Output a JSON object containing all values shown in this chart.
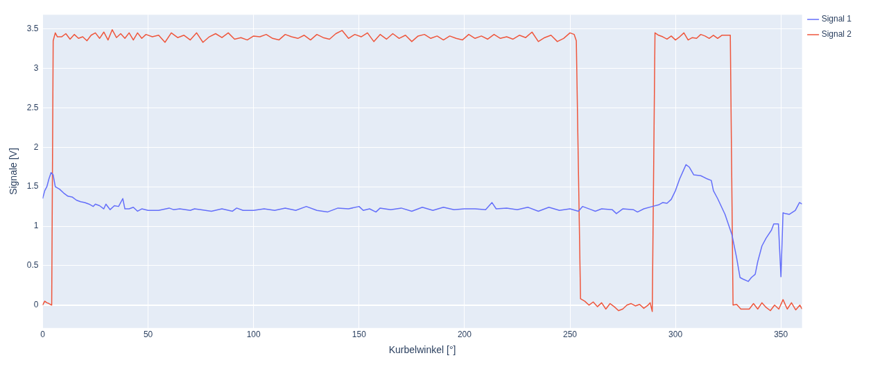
{
  "chart_data": {
    "type": "line",
    "xlabel": "Kurbelwinkel [°]",
    "ylabel": "Signale [V]",
    "xlim": [
      0,
      360
    ],
    "ylim": [
      -0.29,
      3.68
    ],
    "xticks": [
      0,
      50,
      100,
      150,
      200,
      250,
      300,
      350
    ],
    "yticks": [
      0,
      0.5,
      1,
      1.5,
      2,
      2.5,
      3,
      3.5
    ],
    "grid": true,
    "legend": "top right",
    "series": [
      {
        "name": "Signal 1",
        "color": "#636efa",
        "x": [
          0,
          1,
          2,
          3,
          4,
          5,
          6,
          8,
          10,
          12,
          14,
          16,
          18,
          20,
          22,
          24,
          25,
          27,
          29,
          30,
          32,
          34,
          36,
          38,
          39,
          41,
          43,
          45,
          47,
          50,
          55,
          60,
          62,
          65,
          70,
          72,
          75,
          80,
          85,
          90,
          92,
          95,
          100,
          105,
          110,
          115,
          120,
          125,
          130,
          135,
          140,
          145,
          150,
          152,
          155,
          158,
          160,
          165,
          170,
          175,
          180,
          185,
          190,
          195,
          200,
          205,
          210,
          213,
          215,
          220,
          225,
          230,
          235,
          240,
          245,
          250,
          254,
          256,
          260,
          262,
          265,
          270,
          272,
          275,
          280,
          282,
          285,
          289,
          292,
          294,
          296,
          298,
          300,
          302,
          304,
          305,
          306.5,
          308.7,
          312,
          315,
          317,
          318,
          320,
          323.5,
          326.8,
          329,
          330.6,
          332,
          334.5,
          336,
          337.8,
          339,
          341,
          343,
          345.5,
          346.6,
          348.8,
          350,
          351,
          352,
          354,
          356.8,
          358.8,
          360
        ],
        "values": [
          1.35,
          1.45,
          1.5,
          1.6,
          1.68,
          1.65,
          1.5,
          1.47,
          1.42,
          1.38,
          1.37,
          1.33,
          1.31,
          1.3,
          1.28,
          1.25,
          1.28,
          1.26,
          1.22,
          1.28,
          1.21,
          1.26,
          1.25,
          1.35,
          1.22,
          1.22,
          1.24,
          1.19,
          1.22,
          1.2,
          1.2,
          1.23,
          1.21,
          1.22,
          1.2,
          1.22,
          1.21,
          1.19,
          1.22,
          1.19,
          1.23,
          1.2,
          1.2,
          1.22,
          1.2,
          1.23,
          1.2,
          1.25,
          1.2,
          1.18,
          1.23,
          1.22,
          1.25,
          1.2,
          1.22,
          1.18,
          1.23,
          1.21,
          1.23,
          1.19,
          1.24,
          1.2,
          1.24,
          1.21,
          1.22,
          1.22,
          1.21,
          1.3,
          1.22,
          1.23,
          1.21,
          1.24,
          1.19,
          1.24,
          1.2,
          1.22,
          1.19,
          1.25,
          1.21,
          1.19,
          1.22,
          1.21,
          1.16,
          1.22,
          1.21,
          1.18,
          1.22,
          1.25,
          1.27,
          1.3,
          1.29,
          1.34,
          1.45,
          1.6,
          1.72,
          1.78,
          1.75,
          1.65,
          1.64,
          1.6,
          1.58,
          1.45,
          1.35,
          1.15,
          0.89,
          0.6,
          0.35,
          0.33,
          0.3,
          0.35,
          0.39,
          0.55,
          0.75,
          0.85,
          0.95,
          1.03,
          1.03,
          0.36,
          1.17,
          1.16,
          1.15,
          1.2,
          1.3,
          1.28
        ]
      },
      {
        "name": "Signal 2",
        "color": "#ef553b",
        "x": [
          0,
          1,
          2,
          3,
          4.3,
          5,
          6,
          7,
          9,
          11,
          13,
          15,
          17,
          19,
          21,
          23,
          25,
          27,
          29,
          31,
          33,
          35,
          37,
          39,
          41,
          43,
          45,
          47,
          49,
          52,
          55,
          58,
          61,
          64,
          67,
          70,
          73,
          76,
          79,
          82,
          85,
          88,
          91,
          94,
          97,
          100,
          103,
          106,
          109,
          112,
          115,
          118,
          121,
          124,
          127,
          130,
          133,
          136,
          139,
          142,
          145,
          148,
          151,
          154,
          157,
          160,
          163,
          166,
          169,
          172,
          175,
          178,
          181,
          184,
          187,
          190,
          193,
          196,
          199,
          202,
          205,
          208,
          211,
          214,
          217,
          220,
          223,
          226,
          229,
          232,
          235,
          238,
          241,
          244,
          247,
          250,
          252,
          253,
          255,
          257,
          259,
          261,
          263,
          265,
          267,
          269,
          271,
          273,
          275,
          277,
          279,
          281,
          283,
          285,
          287,
          288,
          289,
          290.3,
          292,
          294,
          296,
          298,
          300,
          302,
          304,
          306,
          308,
          310,
          312,
          314,
          316,
          318,
          320,
          322,
          324,
          326,
          327.3,
          329,
          331,
          333,
          335,
          337,
          339,
          341,
          343,
          345,
          347,
          349,
          351,
          353,
          355,
          357,
          359,
          360
        ],
        "values": [
          0.0,
          0.05,
          0.03,
          0.02,
          0.0,
          3.35,
          3.45,
          3.4,
          3.4,
          3.44,
          3.37,
          3.43,
          3.38,
          3.4,
          3.35,
          3.42,
          3.45,
          3.38,
          3.46,
          3.36,
          3.49,
          3.39,
          3.44,
          3.38,
          3.45,
          3.36,
          3.45,
          3.38,
          3.43,
          3.4,
          3.42,
          3.33,
          3.45,
          3.39,
          3.42,
          3.36,
          3.45,
          3.33,
          3.4,
          3.44,
          3.39,
          3.45,
          3.37,
          3.39,
          3.36,
          3.41,
          3.4,
          3.43,
          3.38,
          3.36,
          3.43,
          3.4,
          3.38,
          3.42,
          3.36,
          3.43,
          3.39,
          3.37,
          3.44,
          3.48,
          3.38,
          3.43,
          3.4,
          3.45,
          3.34,
          3.43,
          3.37,
          3.44,
          3.38,
          3.42,
          3.34,
          3.41,
          3.43,
          3.38,
          3.41,
          3.36,
          3.41,
          3.38,
          3.36,
          3.43,
          3.38,
          3.41,
          3.37,
          3.43,
          3.38,
          3.4,
          3.37,
          3.42,
          3.39,
          3.46,
          3.34,
          3.39,
          3.42,
          3.34,
          3.38,
          3.45,
          3.43,
          3.35,
          0.08,
          0.05,
          0.0,
          0.04,
          -0.02,
          0.03,
          -0.05,
          0.02,
          -0.02,
          -0.07,
          -0.05,
          0.0,
          0.02,
          -0.01,
          0.01,
          -0.04,
          0.0,
          0.03,
          -0.08,
          3.45,
          3.42,
          3.4,
          3.37,
          3.41,
          3.36,
          3.4,
          3.45,
          3.36,
          3.39,
          3.38,
          3.43,
          3.41,
          3.38,
          3.42,
          3.38,
          3.42,
          3.42,
          3.42,
          0.0,
          0.01,
          -0.05,
          -0.05,
          -0.05,
          0.02,
          -0.05,
          0.03,
          -0.03,
          -0.07,
          0.0,
          -0.05,
          0.07,
          -0.05,
          0.03,
          -0.06,
          0.0,
          -0.05
        ]
      }
    ]
  }
}
